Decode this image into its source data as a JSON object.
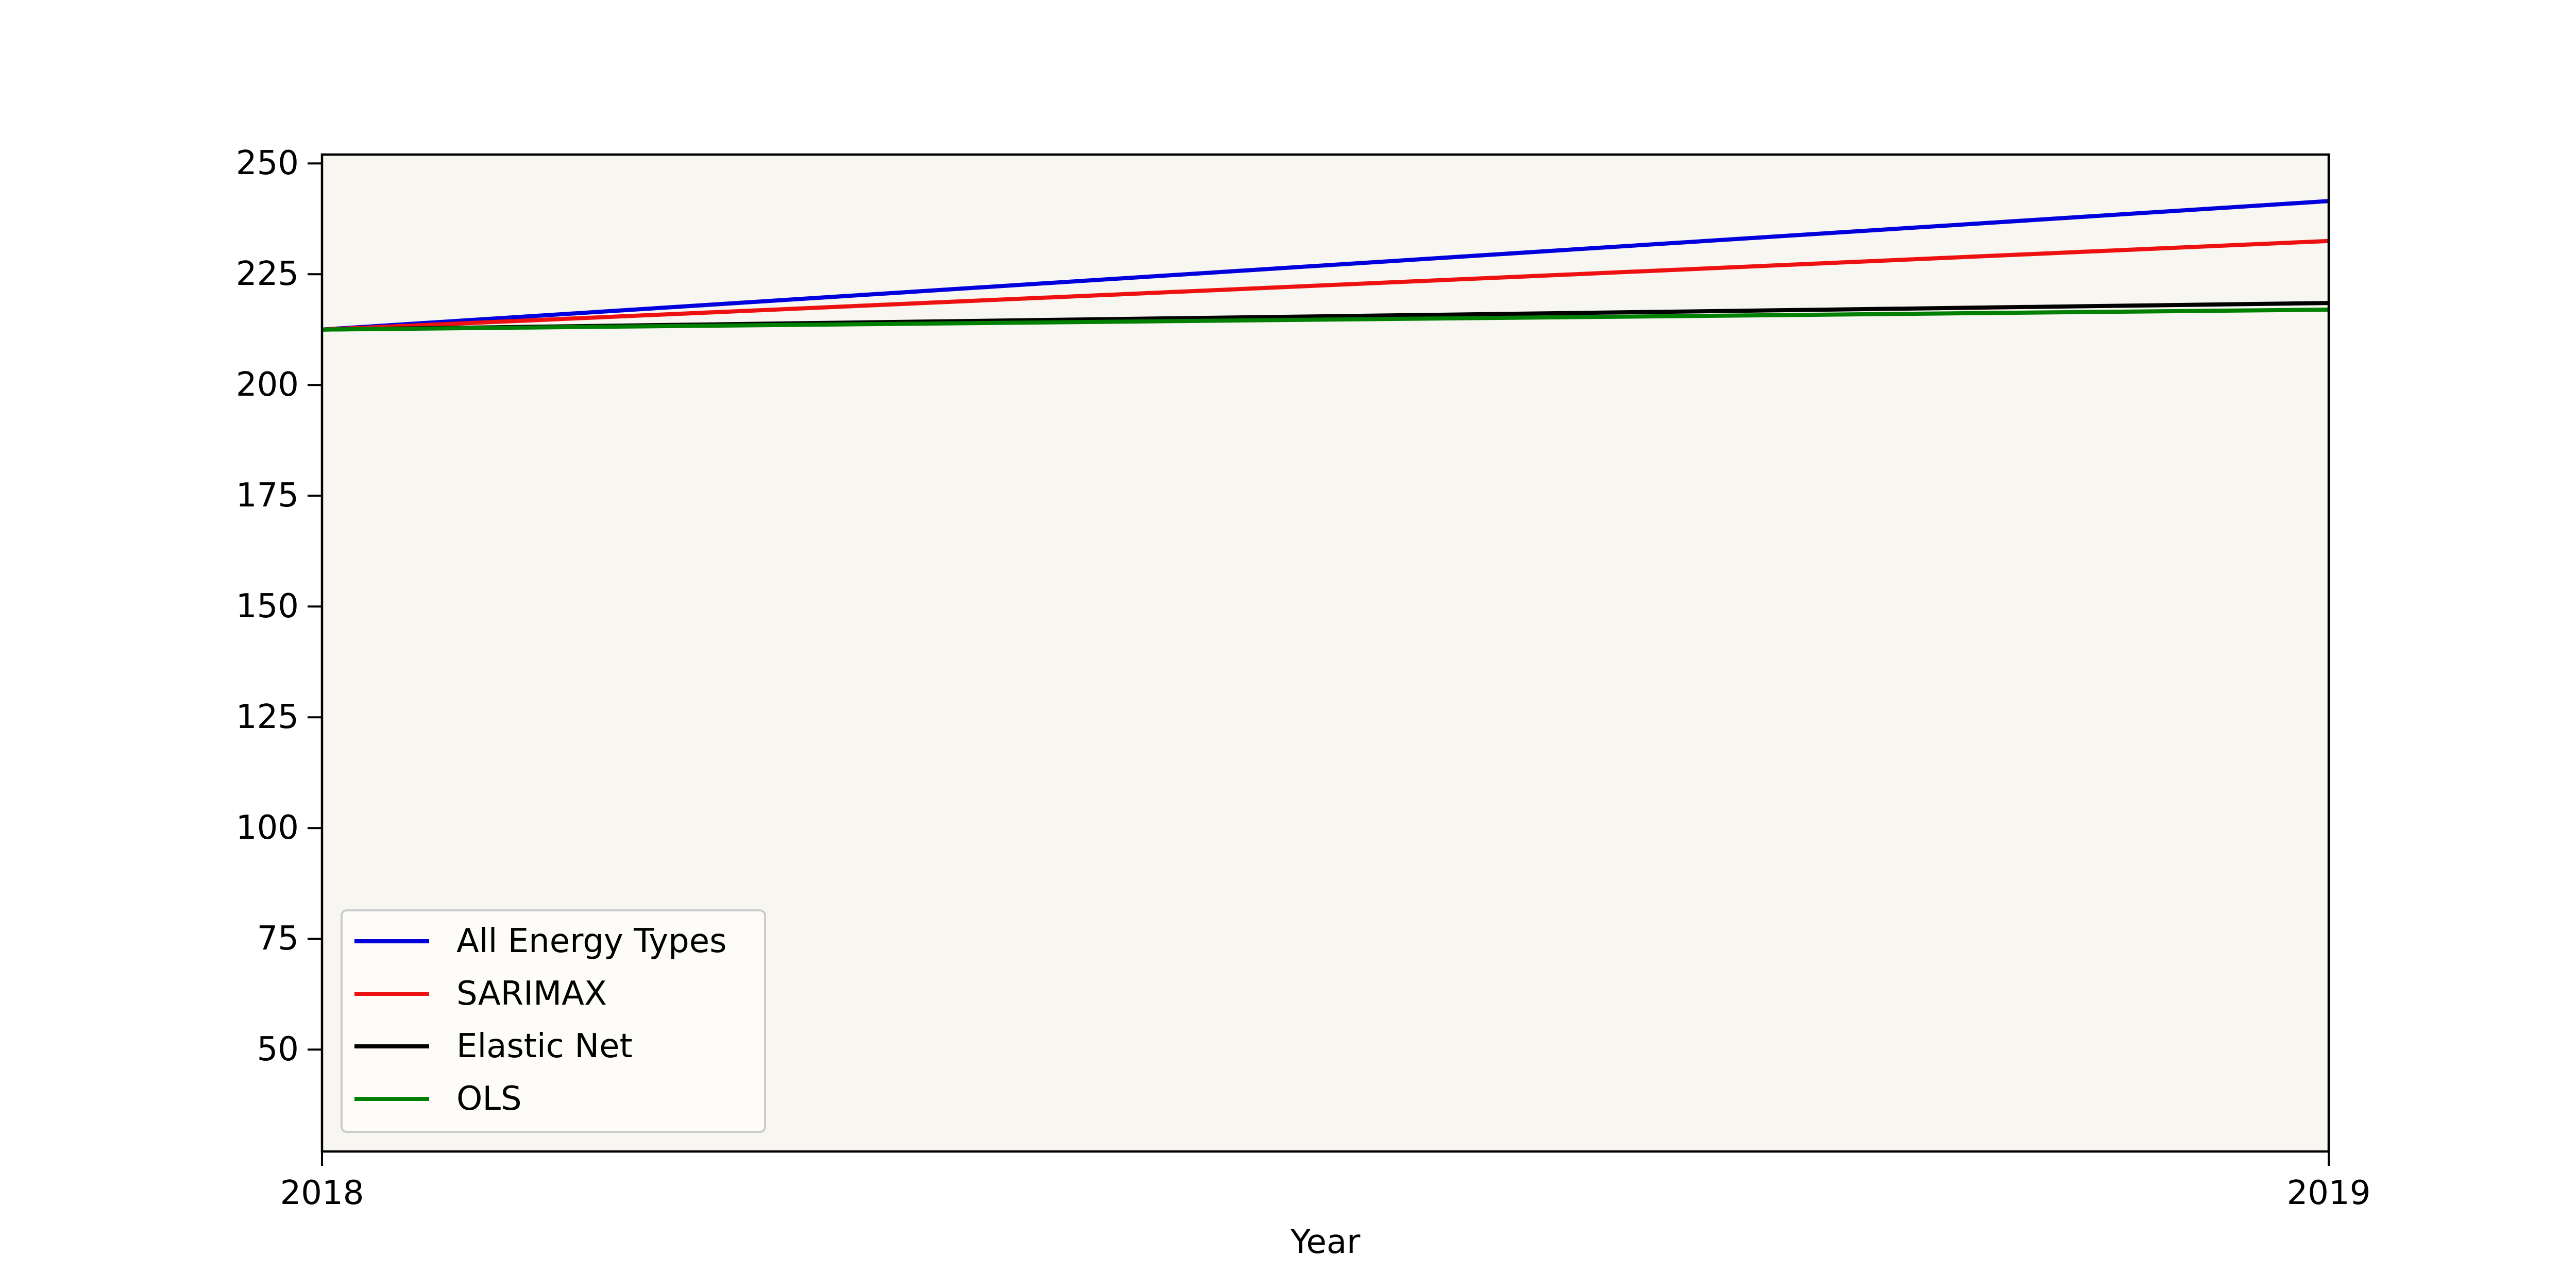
{
  "chart_data": {
    "type": "line",
    "title": "",
    "xlabel": "Year",
    "ylabel": "",
    "x": [
      2018,
      2019
    ],
    "xticks": [
      "2018",
      "2019"
    ],
    "yticks": [
      50,
      75,
      100,
      125,
      150,
      175,
      200,
      225,
      250
    ],
    "xlim": [
      2018,
      2019
    ],
    "ylim": [
      27,
      252
    ],
    "grid": false,
    "legend_position": "lower-left",
    "plot_background": "#f7f6f0",
    "series": [
      {
        "name": "All Energy Types",
        "color": "#0000dd",
        "values": [
          212.5,
          241.5
        ]
      },
      {
        "name": "SARIMAX",
        "color": "#ee1111",
        "values": [
          212.5,
          232.5
        ]
      },
      {
        "name": "Elastic Net",
        "color": "#000000",
        "values": [
          212.5,
          218.5
        ]
      },
      {
        "name": "OLS",
        "color": "#008000",
        "values": [
          212.5,
          217.0
        ]
      }
    ]
  }
}
